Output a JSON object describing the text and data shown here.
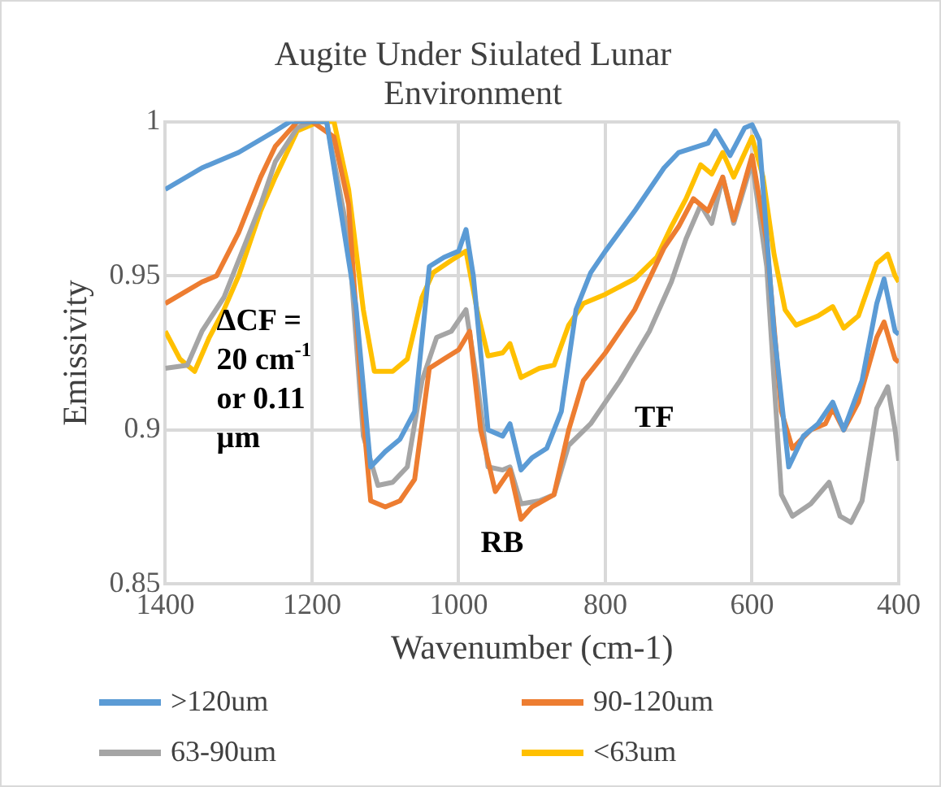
{
  "chart_data": {
    "type": "line",
    "title": "Augite Under Siulated Lunar Environment",
    "xlabel": "Wavenumber (cm-1)",
    "ylabel": "Emissivity",
    "xlim": [
      1400,
      400
    ],
    "xticks": [
      1400,
      1200,
      1000,
      800,
      600,
      400
    ],
    "ylim": [
      0.85,
      1.0
    ],
    "yticks": [
      0.85,
      0.9,
      0.95,
      {
        "value": 1.0,
        "label": "1"
      }
    ],
    "grid": true,
    "legend": "bottom",
    "marker": "none",
    "line_style": "solid",
    "annotations": [
      "ΔCF = 20 cm$^{-1}$ or 0.11 µm",
      "RB",
      "TF"
    ],
    "series": [
      {
        "name": ">120um",
        "color": "#5b9bd5",
        "x": [
          1400,
          1350,
          1300,
          1250,
          1230,
          1200,
          1180,
          1140,
          1120,
          1100,
          1080,
          1060,
          1040,
          1020,
          1000,
          990,
          980,
          960,
          940,
          930,
          915,
          900,
          880,
          860,
          840,
          820,
          800,
          760,
          720,
          700,
          660,
          650,
          630,
          610,
          600,
          590,
          570,
          550,
          530,
          510,
          490,
          475,
          450,
          430,
          420,
          405,
          400
        ],
        "values": [
          0.978,
          0.985,
          0.99,
          0.997,
          1.0,
          1.0,
          1.0,
          0.94,
          0.888,
          0.893,
          0.897,
          0.906,
          0.953,
          0.956,
          0.958,
          0.965,
          0.95,
          0.9,
          0.898,
          0.902,
          0.887,
          0.891,
          0.894,
          0.906,
          0.939,
          0.951,
          0.958,
          0.971,
          0.985,
          0.99,
          0.993,
          0.997,
          0.989,
          0.998,
          0.999,
          0.994,
          0.932,
          0.888,
          0.898,
          0.902,
          0.909,
          0.9,
          0.916,
          0.941,
          0.949,
          0.932,
          0.931
        ]
      },
      {
        "name": "90-120um",
        "color": "#ed7d31",
        "x": [
          1400,
          1350,
          1330,
          1300,
          1270,
          1250,
          1220,
          1200,
          1170,
          1150,
          1130,
          1120,
          1100,
          1080,
          1060,
          1040,
          1020,
          1000,
          985,
          970,
          950,
          930,
          915,
          900,
          870,
          850,
          830,
          800,
          760,
          720,
          700,
          680,
          660,
          640,
          625,
          600,
          580,
          560,
          545,
          520,
          500,
          490,
          475,
          455,
          430,
          420,
          405,
          400
        ],
        "values": [
          0.941,
          0.948,
          0.95,
          0.964,
          0.982,
          0.992,
          1.0,
          1.0,
          0.995,
          0.973,
          0.904,
          0.877,
          0.875,
          0.877,
          0.884,
          0.92,
          0.923,
          0.926,
          0.932,
          0.9,
          0.88,
          0.887,
          0.871,
          0.875,
          0.879,
          0.9,
          0.916,
          0.925,
          0.939,
          0.959,
          0.966,
          0.975,
          0.971,
          0.982,
          0.968,
          0.989,
          0.961,
          0.906,
          0.894,
          0.9,
          0.902,
          0.907,
          0.9,
          0.909,
          0.93,
          0.935,
          0.923,
          0.922
        ]
      },
      {
        "name": "63-90um",
        "color": "#a5a5a5",
        "x": [
          1400,
          1370,
          1350,
          1320,
          1300,
          1270,
          1250,
          1220,
          1200,
          1180,
          1150,
          1130,
          1110,
          1090,
          1070,
          1050,
          1030,
          1010,
          990,
          975,
          960,
          940,
          930,
          915,
          890,
          870,
          850,
          820,
          780,
          740,
          710,
          690,
          670,
          655,
          640,
          625,
          600,
          580,
          560,
          545,
          520,
          495,
          480,
          465,
          450,
          430,
          415,
          405,
          400
        ],
        "values": [
          0.92,
          0.921,
          0.932,
          0.943,
          0.955,
          0.973,
          0.987,
          0.998,
          1.0,
          1.0,
          0.962,
          0.898,
          0.882,
          0.883,
          0.888,
          0.916,
          0.93,
          0.932,
          0.939,
          0.916,
          0.888,
          0.887,
          0.888,
          0.876,
          0.877,
          0.879,
          0.895,
          0.902,
          0.916,
          0.932,
          0.948,
          0.962,
          0.973,
          0.967,
          0.982,
          0.967,
          0.987,
          0.953,
          0.879,
          0.872,
          0.876,
          0.883,
          0.872,
          0.87,
          0.877,
          0.907,
          0.914,
          0.9,
          0.89
        ]
      },
      {
        "name": "<63um",
        "color": "#ffc000",
        "x": [
          1400,
          1380,
          1360,
          1340,
          1320,
          1300,
          1270,
          1250,
          1220,
          1190,
          1170,
          1150,
          1130,
          1115,
          1090,
          1070,
          1050,
          1035,
          1010,
          990,
          975,
          960,
          940,
          930,
          915,
          890,
          870,
          850,
          830,
          800,
          760,
          730,
          710,
          690,
          670,
          655,
          640,
          625,
          600,
          585,
          570,
          555,
          540,
          510,
          490,
          475,
          455,
          430,
          415,
          405,
          400
        ],
        "values": [
          0.932,
          0.923,
          0.919,
          0.93,
          0.939,
          0.95,
          0.971,
          0.982,
          0.997,
          1.0,
          1.0,
          0.978,
          0.939,
          0.919,
          0.919,
          0.923,
          0.943,
          0.951,
          0.955,
          0.958,
          0.939,
          0.924,
          0.925,
          0.928,
          0.917,
          0.92,
          0.921,
          0.934,
          0.941,
          0.944,
          0.949,
          0.956,
          0.966,
          0.975,
          0.986,
          0.983,
          0.99,
          0.982,
          0.995,
          0.982,
          0.957,
          0.939,
          0.934,
          0.937,
          0.94,
          0.933,
          0.937,
          0.954,
          0.957,
          0.95,
          0.948
        ]
      }
    ]
  }
}
